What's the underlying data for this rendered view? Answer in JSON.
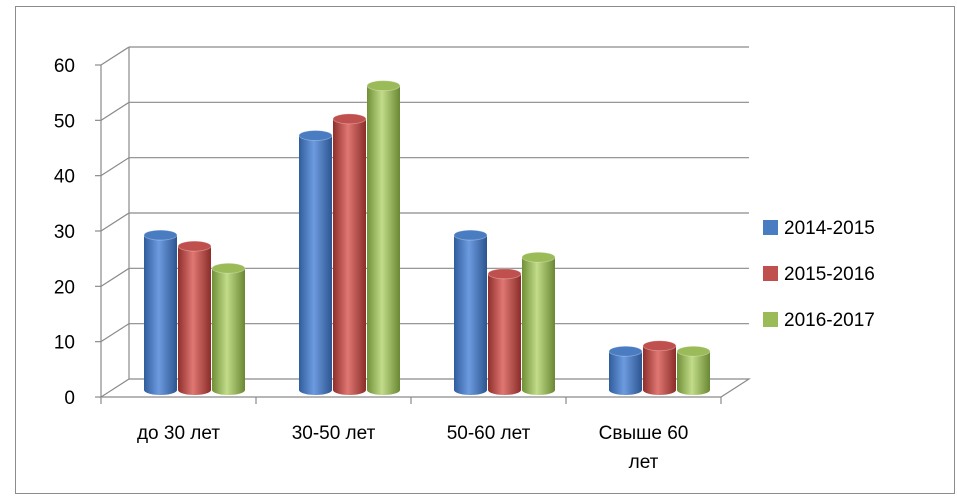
{
  "chart_data": {
    "type": "bar",
    "categories": [
      "до 30 лет",
      "30-50 лет",
      "50-60 лет",
      "Свыше 60 лет"
    ],
    "series": [
      {
        "name": "2014-2015",
        "values": [
          28,
          46,
          28,
          7
        ],
        "color": "#4a7cc1"
      },
      {
        "name": "2015-2016",
        "values": [
          26,
          49,
          21,
          8
        ],
        "color": "#c0504d"
      },
      {
        "name": "2016-2017",
        "values": [
          22,
          55,
          24,
          7
        ],
        "color": "#9bbb59"
      }
    ],
    "ylim": [
      0,
      60
    ],
    "yticks": [
      0,
      10,
      20,
      30,
      40,
      50,
      60
    ],
    "grid": true,
    "legend_position": "right",
    "style": "3d-cylinder"
  }
}
